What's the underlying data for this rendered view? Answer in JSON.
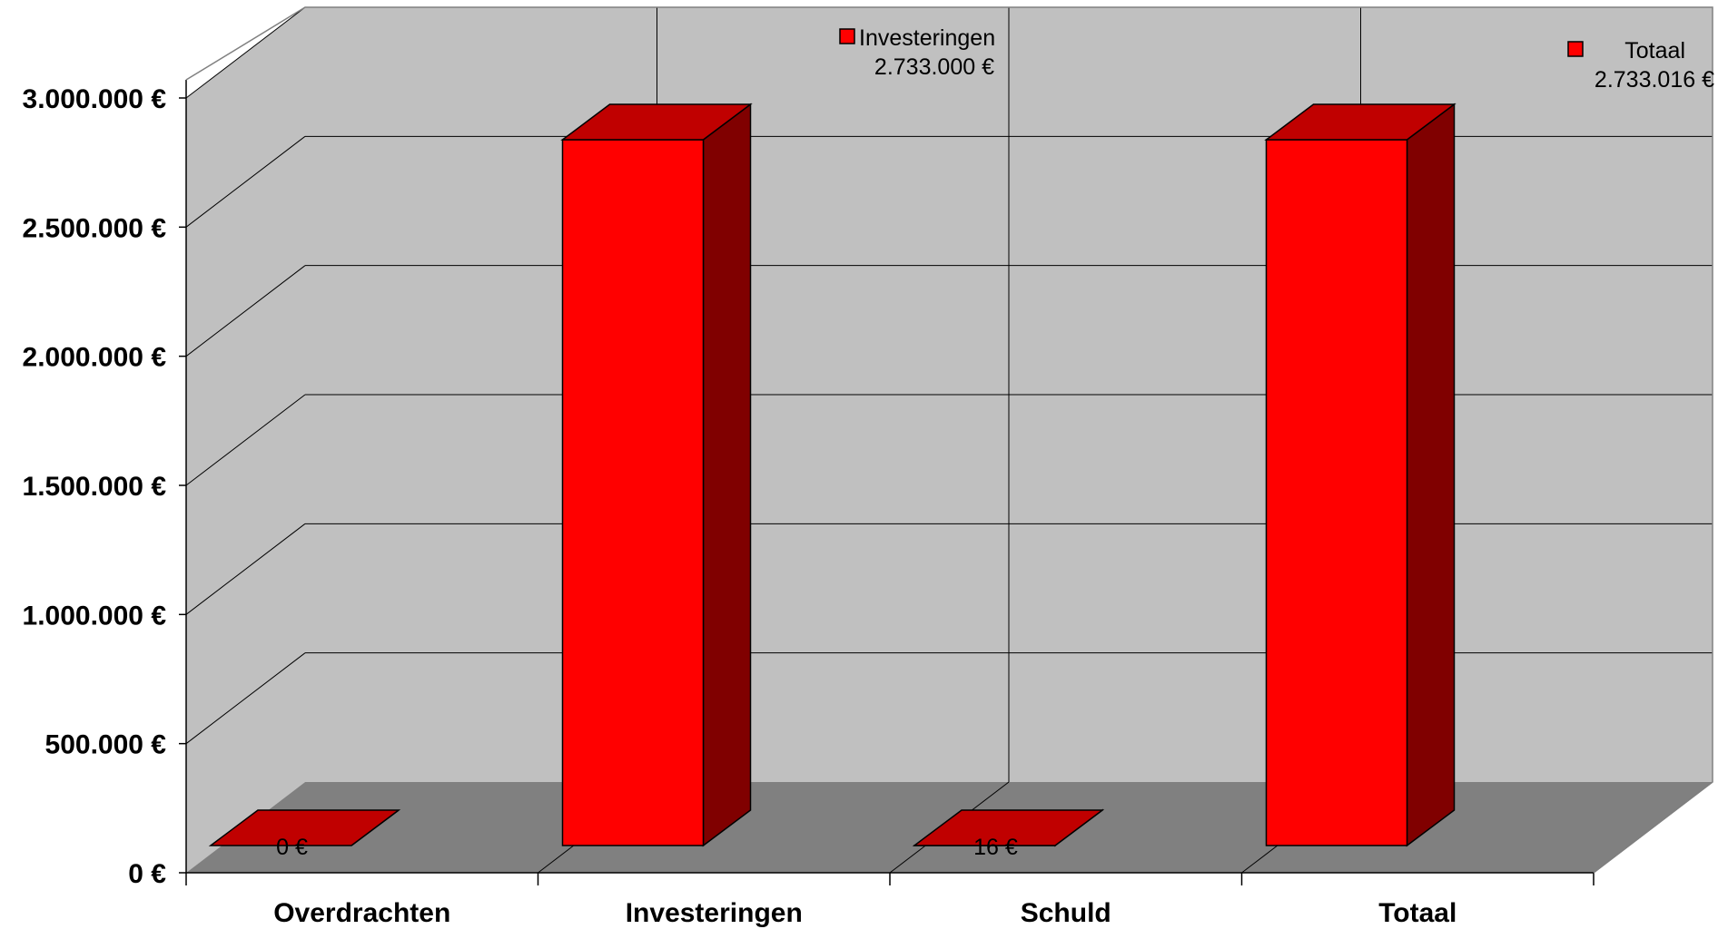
{
  "chart_data": {
    "type": "bar",
    "style": "3d-column",
    "categories": [
      "Overdrachten",
      "Investeringen",
      "Schuld",
      "Totaal"
    ],
    "values": [
      0,
      2733000,
      16,
      2733016
    ],
    "data_labels": [
      {
        "name": "",
        "value": "0 €"
      },
      {
        "name": "Investeringen",
        "value": "2.733.000 €"
      },
      {
        "name": "",
        "value": "16 €"
      },
      {
        "name": "Totaal",
        "value": "2.733.016 €"
      }
    ],
    "yticks": [
      0,
      500000,
      1000000,
      1500000,
      2000000,
      2500000,
      3000000
    ],
    "ytick_labels": [
      "0 €",
      "500.000 €",
      "1.000.000 €",
      "1.500.000 €",
      "2.000.000 €",
      "2.500.000 €",
      "3.000.000 €"
    ],
    "ylim": [
      0,
      3000000
    ],
    "title": "",
    "xlabel": "",
    "ylabel": "",
    "grid": true,
    "legend": false,
    "colors": {
      "bar_front": "#ff0000",
      "bar_top": "#c00000",
      "bar_side": "#800000",
      "wall": "#c0c0c0",
      "floor": "#808080"
    }
  }
}
